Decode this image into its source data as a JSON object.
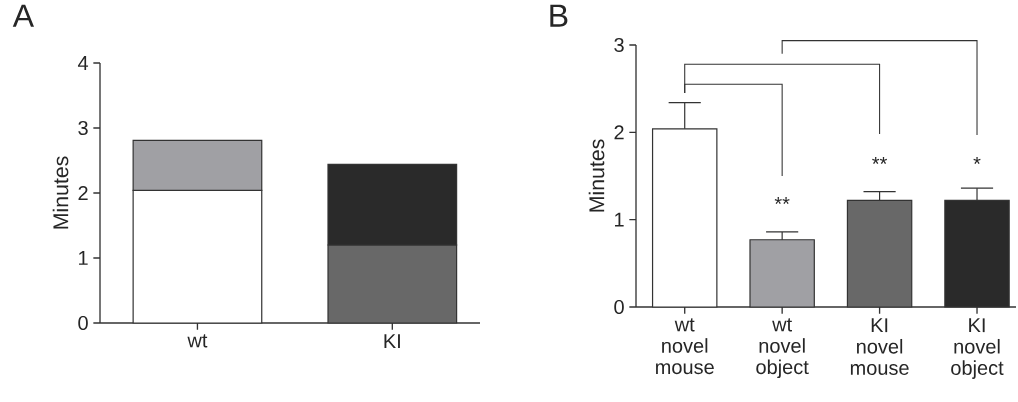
{
  "chart_data": [
    {
      "type": "bar",
      "title": "A",
      "ylabel": "Minutes",
      "categories": [
        "wt",
        "KI"
      ],
      "stacked": true,
      "series": [
        {
          "values": [
            2.04,
            1.2
          ],
          "colors": [
            "#ffffff",
            "#686868"
          ]
        },
        {
          "values": [
            0.77,
            1.24
          ],
          "colors": [
            "#a0a0a4",
            "#2a2a2a"
          ]
        }
      ],
      "ylim": [
        0,
        4
      ],
      "yticks": [
        0,
        1,
        2,
        3,
        4
      ]
    },
    {
      "type": "bar",
      "title": "B",
      "ylabel": "Minutes",
      "categories": [
        "wt novel mouse",
        "wt novel object",
        "KI novel mouse",
        "KI novel object"
      ],
      "values": [
        2.04,
        0.77,
        1.22,
        1.22
      ],
      "colors": [
        "#ffffff",
        "#a0a0a4",
        "#686868",
        "#2a2a2a"
      ],
      "errors": [
        0.3,
        0.09,
        0.1,
        0.14
      ],
      "ylim": [
        0,
        3
      ],
      "yticks": [
        0,
        1,
        2,
        3
      ],
      "annotations": [
        "**",
        "**",
        "*"
      ]
    }
  ]
}
